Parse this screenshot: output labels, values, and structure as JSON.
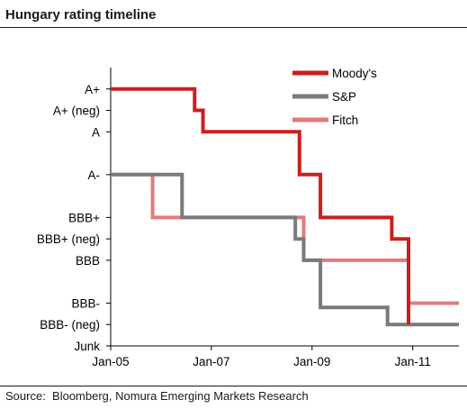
{
  "title": "Hungary rating timeline",
  "source": "Source:  Bloomberg, Nomura Emerging Markets Research",
  "chart_data": {
    "type": "line",
    "step": true,
    "title": "Hungary rating timeline",
    "y_categories": [
      "Junk",
      "BBB- (neg)",
      "BBB-",
      "BBB",
      "BBB+ (neg)",
      "BBB+",
      "A-",
      "A",
      "A+ (neg)",
      "A+"
    ],
    "y_label_values": [
      0,
      1,
      2,
      4,
      5,
      6,
      8,
      10,
      11,
      12
    ],
    "x_ticks": [
      "Jan-05",
      "Jan-07",
      "Jan-09",
      "Jan-11"
    ],
    "xlim": [
      "2005-01",
      "2011-12"
    ],
    "ylim": [
      0,
      13
    ],
    "grid": false,
    "legend_position": "top-right",
    "series": [
      {
        "name": "Moody's",
        "color": "#cc1f1f",
        "points": [
          [
            "2005-01",
            12
          ],
          [
            "2006-09",
            12
          ],
          [
            "2006-09",
            11
          ],
          [
            "2006-11",
            11
          ],
          [
            "2006-11",
            10
          ],
          [
            "2008-10",
            10
          ],
          [
            "2008-10",
            8
          ],
          [
            "2009-03",
            8
          ],
          [
            "2009-03",
            6
          ],
          [
            "2010-08",
            6
          ],
          [
            "2010-08",
            5
          ],
          [
            "2010-12",
            5
          ],
          [
            "2010-12",
            1
          ]
        ]
      },
      {
        "name": "S&P",
        "color": "#7a7a7a",
        "points": [
          [
            "2005-01",
            8
          ],
          [
            "2006-06",
            8
          ],
          [
            "2006-06",
            6
          ],
          [
            "2008-09",
            6
          ],
          [
            "2008-09",
            5
          ],
          [
            "2008-11",
            5
          ],
          [
            "2008-11",
            4
          ],
          [
            "2009-03",
            4
          ],
          [
            "2009-03",
            1.8
          ],
          [
            "2010-07",
            1.8
          ],
          [
            "2010-07",
            1
          ],
          [
            "2011-12",
            1
          ]
        ]
      },
      {
        "name": "Fitch",
        "color": "#e07c7c",
        "points": [
          [
            "2005-01",
            8
          ],
          [
            "2005-11",
            8
          ],
          [
            "2005-11",
            6
          ],
          [
            "2008-11",
            6
          ],
          [
            "2008-11",
            4
          ],
          [
            "2010-12",
            4
          ],
          [
            "2010-12",
            2
          ],
          [
            "2011-12",
            2
          ]
        ]
      }
    ]
  }
}
